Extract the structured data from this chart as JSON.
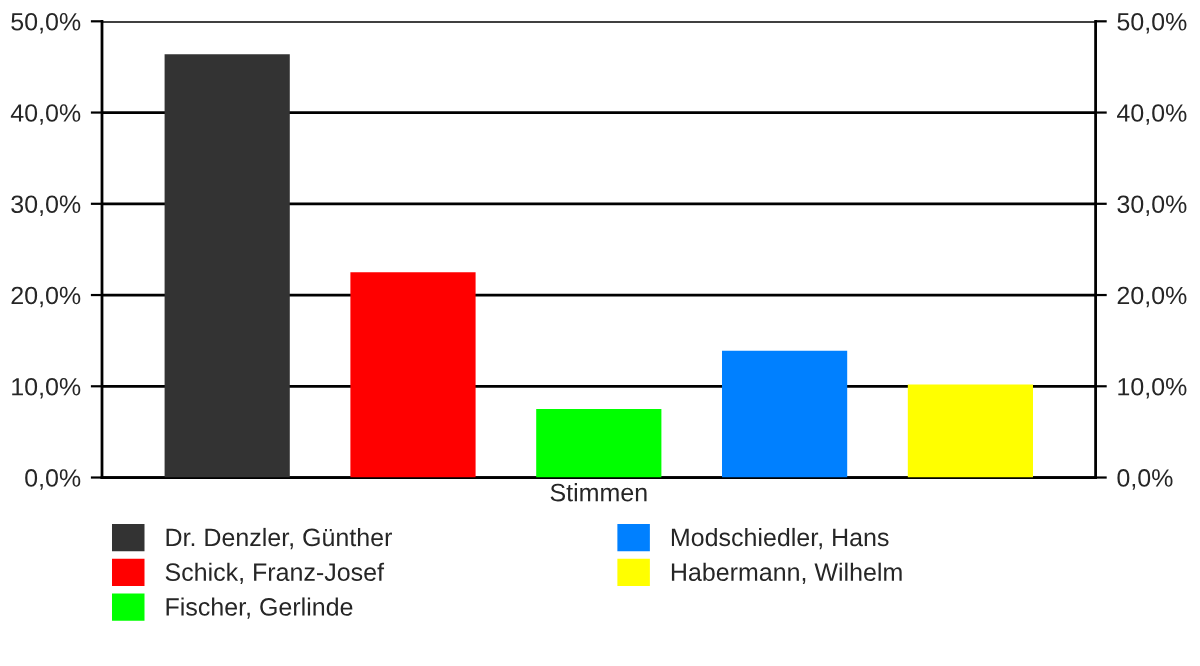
{
  "chart_data": {
    "type": "bar",
    "categories": [
      "Stimmen"
    ],
    "series": [
      {
        "name": "Dr. Denzler, Günther",
        "color": "#333333",
        "values": [
          46.4
        ]
      },
      {
        "name": "Schick, Franz-Josef",
        "color": "#ff0000",
        "values": [
          22.5
        ]
      },
      {
        "name": "Fischer, Gerlinde",
        "color": "#00ff00",
        "values": [
          7.5
        ]
      },
      {
        "name": "Modschiedler, Hans",
        "color": "#0080ff",
        "values": [
          13.9
        ]
      },
      {
        "name": "Habermann, Wilhelm",
        "color": "#ffff00",
        "values": [
          10.2
        ]
      }
    ],
    "ylim": [
      0,
      50
    ],
    "yticks": [
      {
        "value": 0,
        "label": "0,0%"
      },
      {
        "value": 10,
        "label": "10,0%"
      },
      {
        "value": 20,
        "label": "20,0%"
      },
      {
        "value": 30,
        "label": "30,0%"
      },
      {
        "value": 40,
        "label": "40,0%"
      },
      {
        "value": 50,
        "label": "50,0%"
      }
    ],
    "grid": "y",
    "legend": "bottom"
  }
}
